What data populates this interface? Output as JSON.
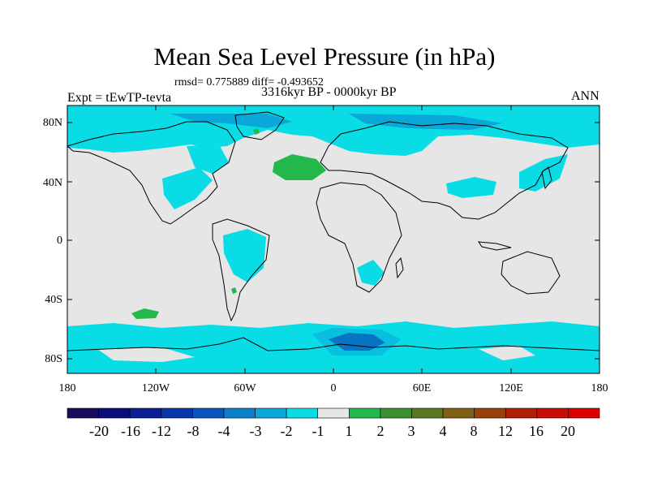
{
  "title": "Mean Sea Level Pressure (in hPa)",
  "stats_text": "rmsd= 0.775889  diff= -0.493652",
  "experiment_label": "Expt = tEwTP-tevta",
  "period_label": "3316kyr BP - 0000kyr BP",
  "season_label": "ANN",
  "lat_ticks": [
    "80N",
    "40N",
    "0",
    "40S",
    "80S"
  ],
  "lon_ticks": [
    "180",
    "120W",
    "60W",
    "0",
    "60E",
    "120E",
    "180"
  ],
  "colorbar": {
    "labels": [
      "-20",
      "-16",
      "-12",
      "-8",
      "-4",
      "-3",
      "-2",
      "-1",
      "1",
      "2",
      "3",
      "4",
      "8",
      "12",
      "16",
      "20"
    ],
    "colors": [
      "#1a0a5c",
      "#0b0b7a",
      "#0a1e96",
      "#0a36aa",
      "#0a55bc",
      "#0a7ec8",
      "#0aa8d8",
      "#0adce6",
      "#e6e6e6",
      "#22b84a",
      "#3e8f32",
      "#5a7820",
      "#806014",
      "#9a400c",
      "#b02008",
      "#c80c06",
      "#dd0000"
    ]
  },
  "colors": {
    "neutral": "#e6e6e6",
    "light_blue": "#0adce6",
    "mid_blue": "#0aa8d8",
    "deep_blue": "#0a36aa",
    "green": "#22b84a",
    "coast": "#000000"
  }
}
